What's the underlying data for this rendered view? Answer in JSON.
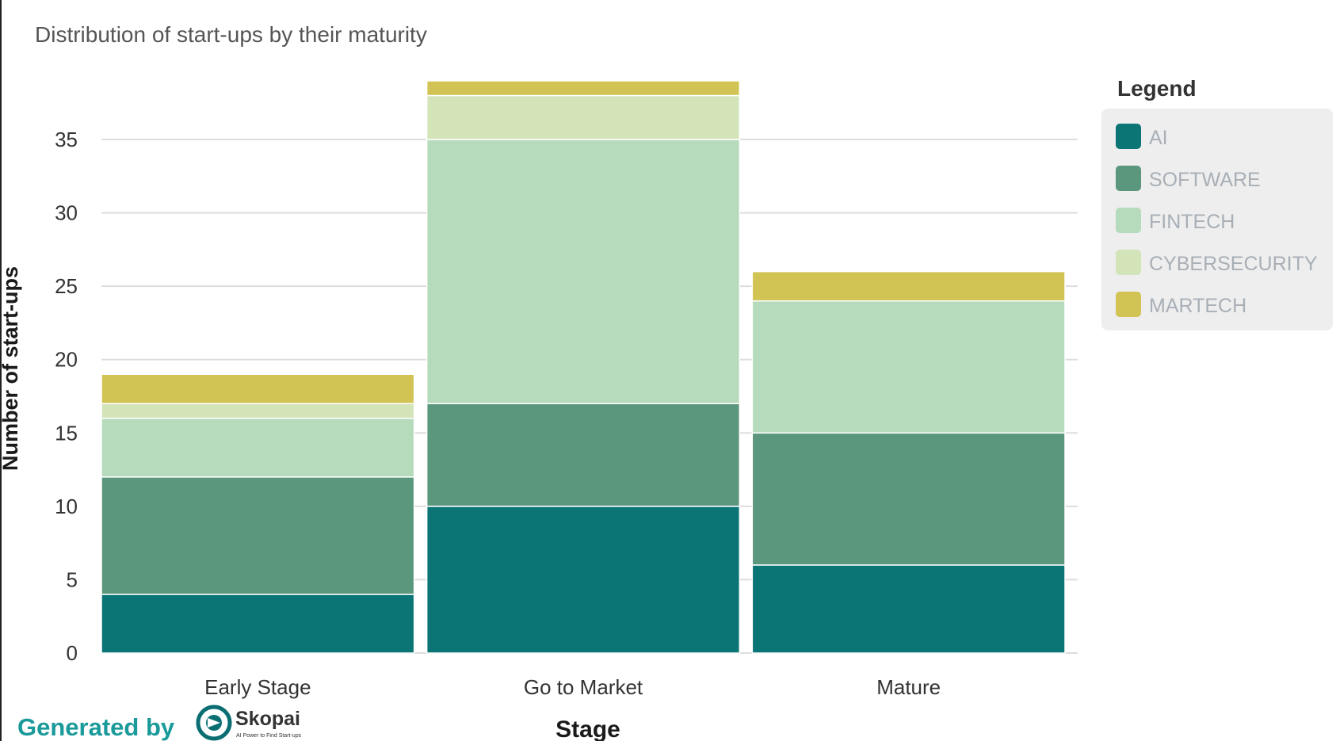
{
  "chart_data": {
    "type": "bar",
    "stacked": true,
    "title": "Distribution of start-ups by their maturity",
    "xlabel": "Stage",
    "ylabel": "Number of start-ups",
    "categories": [
      "Early Stage",
      "Go to Market",
      "Mature"
    ],
    "series": [
      {
        "name": "AI",
        "values": [
          4,
          10,
          6
        ],
        "color": "#0b7475"
      },
      {
        "name": "SOFTWARE",
        "values": [
          8,
          7,
          9
        ],
        "color": "#5b977c"
      },
      {
        "name": "FINTECH",
        "values": [
          4,
          18,
          9
        ],
        "color": "#b5dbbc"
      },
      {
        "name": "CYBERSECURITY",
        "values": [
          1,
          3,
          0
        ],
        "color": "#d3e4b9"
      },
      {
        "name": "MARTECH",
        "values": [
          2,
          1,
          2
        ],
        "color": "#d2c355"
      }
    ],
    "ylim": [
      0,
      39
    ],
    "yticks": [
      0,
      5,
      10,
      15,
      20,
      25,
      30,
      35
    ],
    "grid": true,
    "legend": {
      "title": "Legend",
      "placement": "right"
    }
  },
  "footer": {
    "generated_by": "Generated by",
    "brand": "Skopai",
    "tagline": "AI Power to Find Start-ups"
  }
}
